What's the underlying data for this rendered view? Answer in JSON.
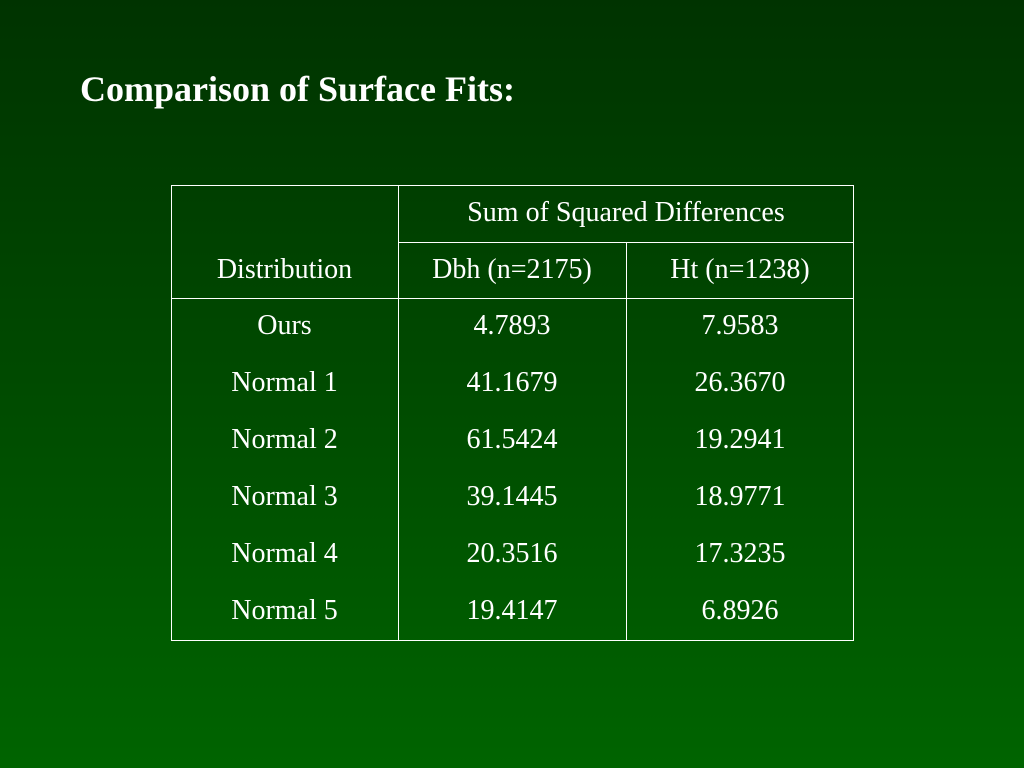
{
  "title": "Comparison of Surface Fits:",
  "table": {
    "group_header": "Sum of Squared Differences",
    "columns": [
      "Distribution",
      "Dbh (n=2175)",
      "Ht (n=1238)"
    ],
    "rows": [
      [
        "Ours",
        "4.7893",
        "7.9583"
      ],
      [
        "Normal 1",
        "41.1679",
        "26.3670"
      ],
      [
        "Normal 2",
        "61.5424",
        "19.2941"
      ],
      [
        "Normal 3",
        "39.1445",
        "18.9771"
      ],
      [
        "Normal 4",
        "20.3516",
        "17.3235"
      ],
      [
        "Normal 5",
        "19.4147",
        "6.8926"
      ]
    ]
  }
}
